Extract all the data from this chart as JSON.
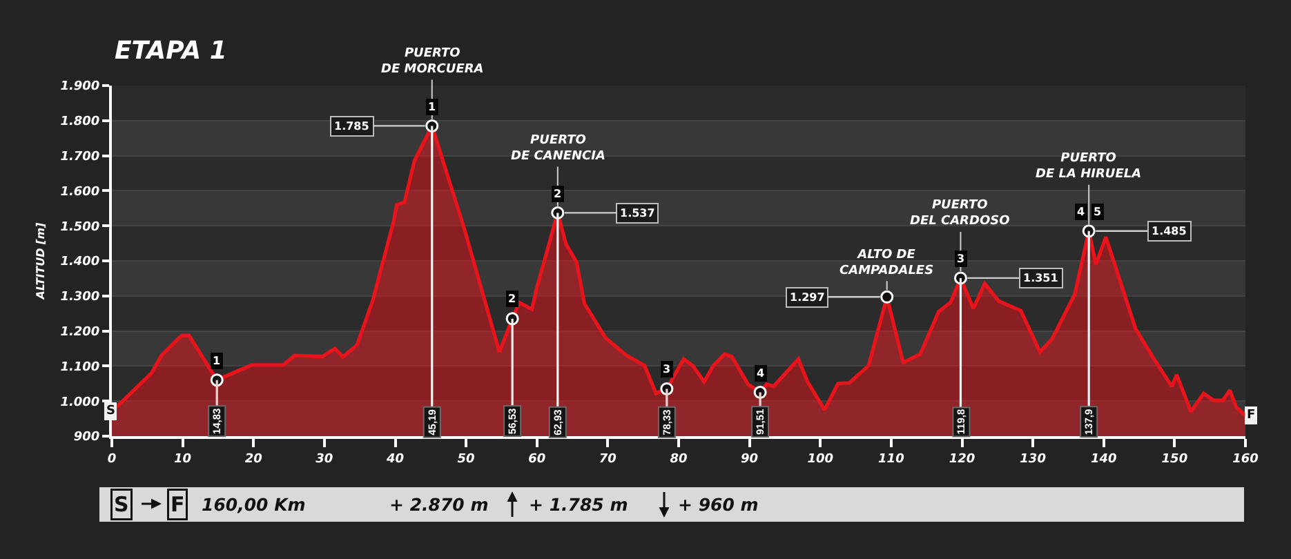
{
  "chart_data": {
    "type": "area",
    "title": "ETAPA 1",
    "ylabel": "ALTITUD [m]",
    "xlim": [
      0,
      160
    ],
    "xticks": [
      0,
      10,
      20,
      30,
      40,
      50,
      60,
      70,
      80,
      90,
      100,
      110,
      120,
      130,
      140,
      150,
      160
    ],
    "ylim": [
      900,
      1900
    ],
    "yticks": [
      900,
      {
        "value": 1000,
        "label": "1.000"
      },
      {
        "value": 1100,
        "label": "1.100"
      },
      {
        "value": 1200,
        "label": "1.200"
      },
      {
        "value": 1300,
        "label": "1.300"
      },
      {
        "value": 1400,
        "label": "1.400"
      },
      {
        "value": 1500,
        "label": "1.500"
      },
      {
        "value": 1600,
        "label": "1.600"
      },
      {
        "value": 1700,
        "label": "1.700"
      },
      {
        "value": 1800,
        "label": "1.800"
      },
      {
        "value": 1900,
        "label": "1.900"
      }
    ],
    "grid": "y",
    "series": [
      {
        "color": "#e8141c",
        "x": [
          0,
          5.6,
          7,
          9.2,
          9.9,
          10.9,
          14.83,
          18,
          19.8,
          24.2,
          25.8,
          29.7,
          31.5,
          32.6,
          34.6,
          36.8,
          39.8,
          40.2,
          41.3,
          42.7,
          45.19,
          49.8,
          54.7,
          56.53,
          57.5,
          59.3,
          59.9,
          62.93,
          64.1,
          65.6,
          66.7,
          69.7,
          72.6,
          75.2,
          76.8,
          78.33,
          80.7,
          82,
          83.6,
          84.9,
          86.5,
          87.5,
          89.8,
          91.51,
          92.4,
          93.4,
          96.9,
          98.2,
          100.6,
          102.5,
          104.1,
          106.8,
          109.4,
          111.7,
          114.1,
          116.7,
          118.4,
          119.8,
          121.6,
          123.2,
          125.2,
          128.3,
          131,
          132.7,
          135.9,
          137.9,
          138.9,
          140.3,
          142.2,
          144.5,
          147.1,
          149.6,
          150.3,
          152.3,
          154.1,
          155.5,
          156.8,
          157.8,
          158.7,
          160
        ],
        "values": [
          970,
          1080,
          1130,
          1175,
          1187,
          1187,
          1060,
          1088,
          1103,
          1103,
          1130,
          1127,
          1150,
          1126,
          1160,
          1285,
          1515,
          1560,
          1567,
          1685,
          1785,
          1488,
          1140,
          1235,
          1281,
          1262,
          1317,
          1537,
          1448,
          1396,
          1278,
          1180,
          1131,
          1101,
          1022,
          1035,
          1120,
          1101,
          1055,
          1101,
          1134,
          1127,
          1048,
          1025,
          1048,
          1042,
          1120,
          1055,
          975,
          1050,
          1052,
          1101,
          1297,
          1110,
          1134,
          1255,
          1282,
          1351,
          1264,
          1335,
          1285,
          1258,
          1140,
          1177,
          1304,
          1485,
          1390,
          1468,
          1350,
          1206,
          1120,
          1042,
          1075,
          970,
          1022,
          1002,
          1002,
          1031,
          983,
          959
        ]
      },
      {
        "type": "scatter",
        "marker": "circle",
        "color": "#111111",
        "x": [
          14.83,
          45.19,
          56.53,
          62.93,
          78.33,
          91.51,
          109.4,
          119.8,
          137.9
        ],
        "values": [
          1060,
          1785,
          1235,
          1537,
          1035,
          1025,
          1297,
          1351,
          1485
        ],
        "value_labels": [
          null,
          "1.785",
          null,
          "1.537",
          null,
          null,
          "1.297",
          "1.351",
          "1.485"
        ]
      }
    ],
    "ref_lines": [
      {
        "axis": "x",
        "value": 14.83,
        "label": "14,83",
        "color": "#f0d0d0"
      },
      {
        "axis": "x",
        "value": 45.19,
        "label": "45,19",
        "color": "#f2f2f2"
      },
      {
        "axis": "x",
        "value": 56.53,
        "label": "56,53",
        "color": "#f2f2f2"
      },
      {
        "axis": "x",
        "value": 62.93,
        "label": "62,93",
        "color": "#f2f2f2"
      },
      {
        "axis": "x",
        "value": 78.33,
        "label": "78,33",
        "color": "#f0d0d0"
      },
      {
        "axis": "x",
        "value": 91.51,
        "label": "91,51",
        "color": "#f0d0d0"
      },
      {
        "axis": "x",
        "value": 119.8,
        "label": "119,8",
        "color": "#f2f2f2"
      },
      {
        "axis": "x",
        "value": 137.9,
        "label": "137,9",
        "color": "#f2f2f2"
      }
    ],
    "annotations": [
      {
        "text": "PUERTO\nDE MORCUERA",
        "x": 45.19,
        "y": 1785
      },
      {
        "text": "PUERTO\nDE CANENCIA",
        "x": 62.93,
        "y": 1537
      },
      {
        "text": "ALTO DE\nCAMPADALES",
        "x": 109.4,
        "y": 1297
      },
      {
        "text": "PUERTO\nDEL CARDOSO",
        "x": 119.8,
        "y": 1351
      },
      {
        "text": "PUERTO\nDE LA HIRUELA",
        "x": 137.9,
        "y": 1485
      },
      {
        "text": "1",
        "x": 14.83,
        "y": 1060
      },
      {
        "text": "1",
        "x": 45.19,
        "y": 1785
      },
      {
        "text": "2",
        "x": 56.53,
        "y": 1235
      },
      {
        "text": "2",
        "x": 62.93,
        "y": 1537
      },
      {
        "text": "3",
        "x": 78.33,
        "y": 1035
      },
      {
        "text": "4",
        "x": 91.51,
        "y": 1025
      },
      {
        "text": "3",
        "x": 119.8,
        "y": 1351
      },
      {
        "text": "4",
        "x": 137.9,
        "y": 1485
      },
      {
        "text": "5",
        "x": 137.9,
        "y": 1485
      },
      {
        "text": "S",
        "x": 0,
        "y": 970
      },
      {
        "text": "F",
        "x": 160,
        "y": 959
      },
      "S",
      "F",
      "160,00 Km",
      "+ 2.870 m",
      "+ 1.785 m",
      "+ 960 m"
    ]
  }
}
